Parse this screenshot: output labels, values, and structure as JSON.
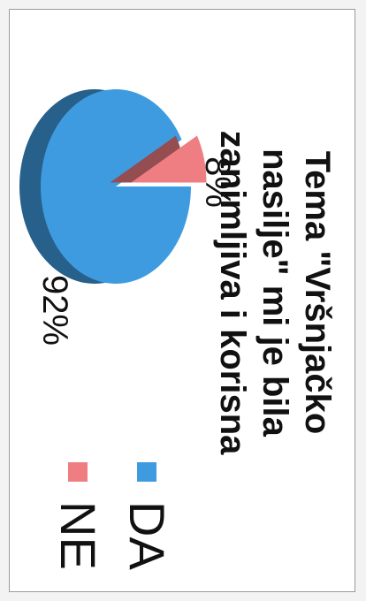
{
  "chart_data": {
    "type": "pie",
    "title_lines": [
      "Tema \"Vršnjačko",
      "nasilje\" mi je bila",
      "zanimljiva i korisna"
    ],
    "categories": [
      "DA",
      "NE"
    ],
    "values": [
      92,
      8
    ],
    "labels": [
      "92%",
      "8%"
    ],
    "colors": [
      "#3f9be0",
      "#ee7e82"
    ],
    "legend_position": "right",
    "exploded": "NE"
  }
}
